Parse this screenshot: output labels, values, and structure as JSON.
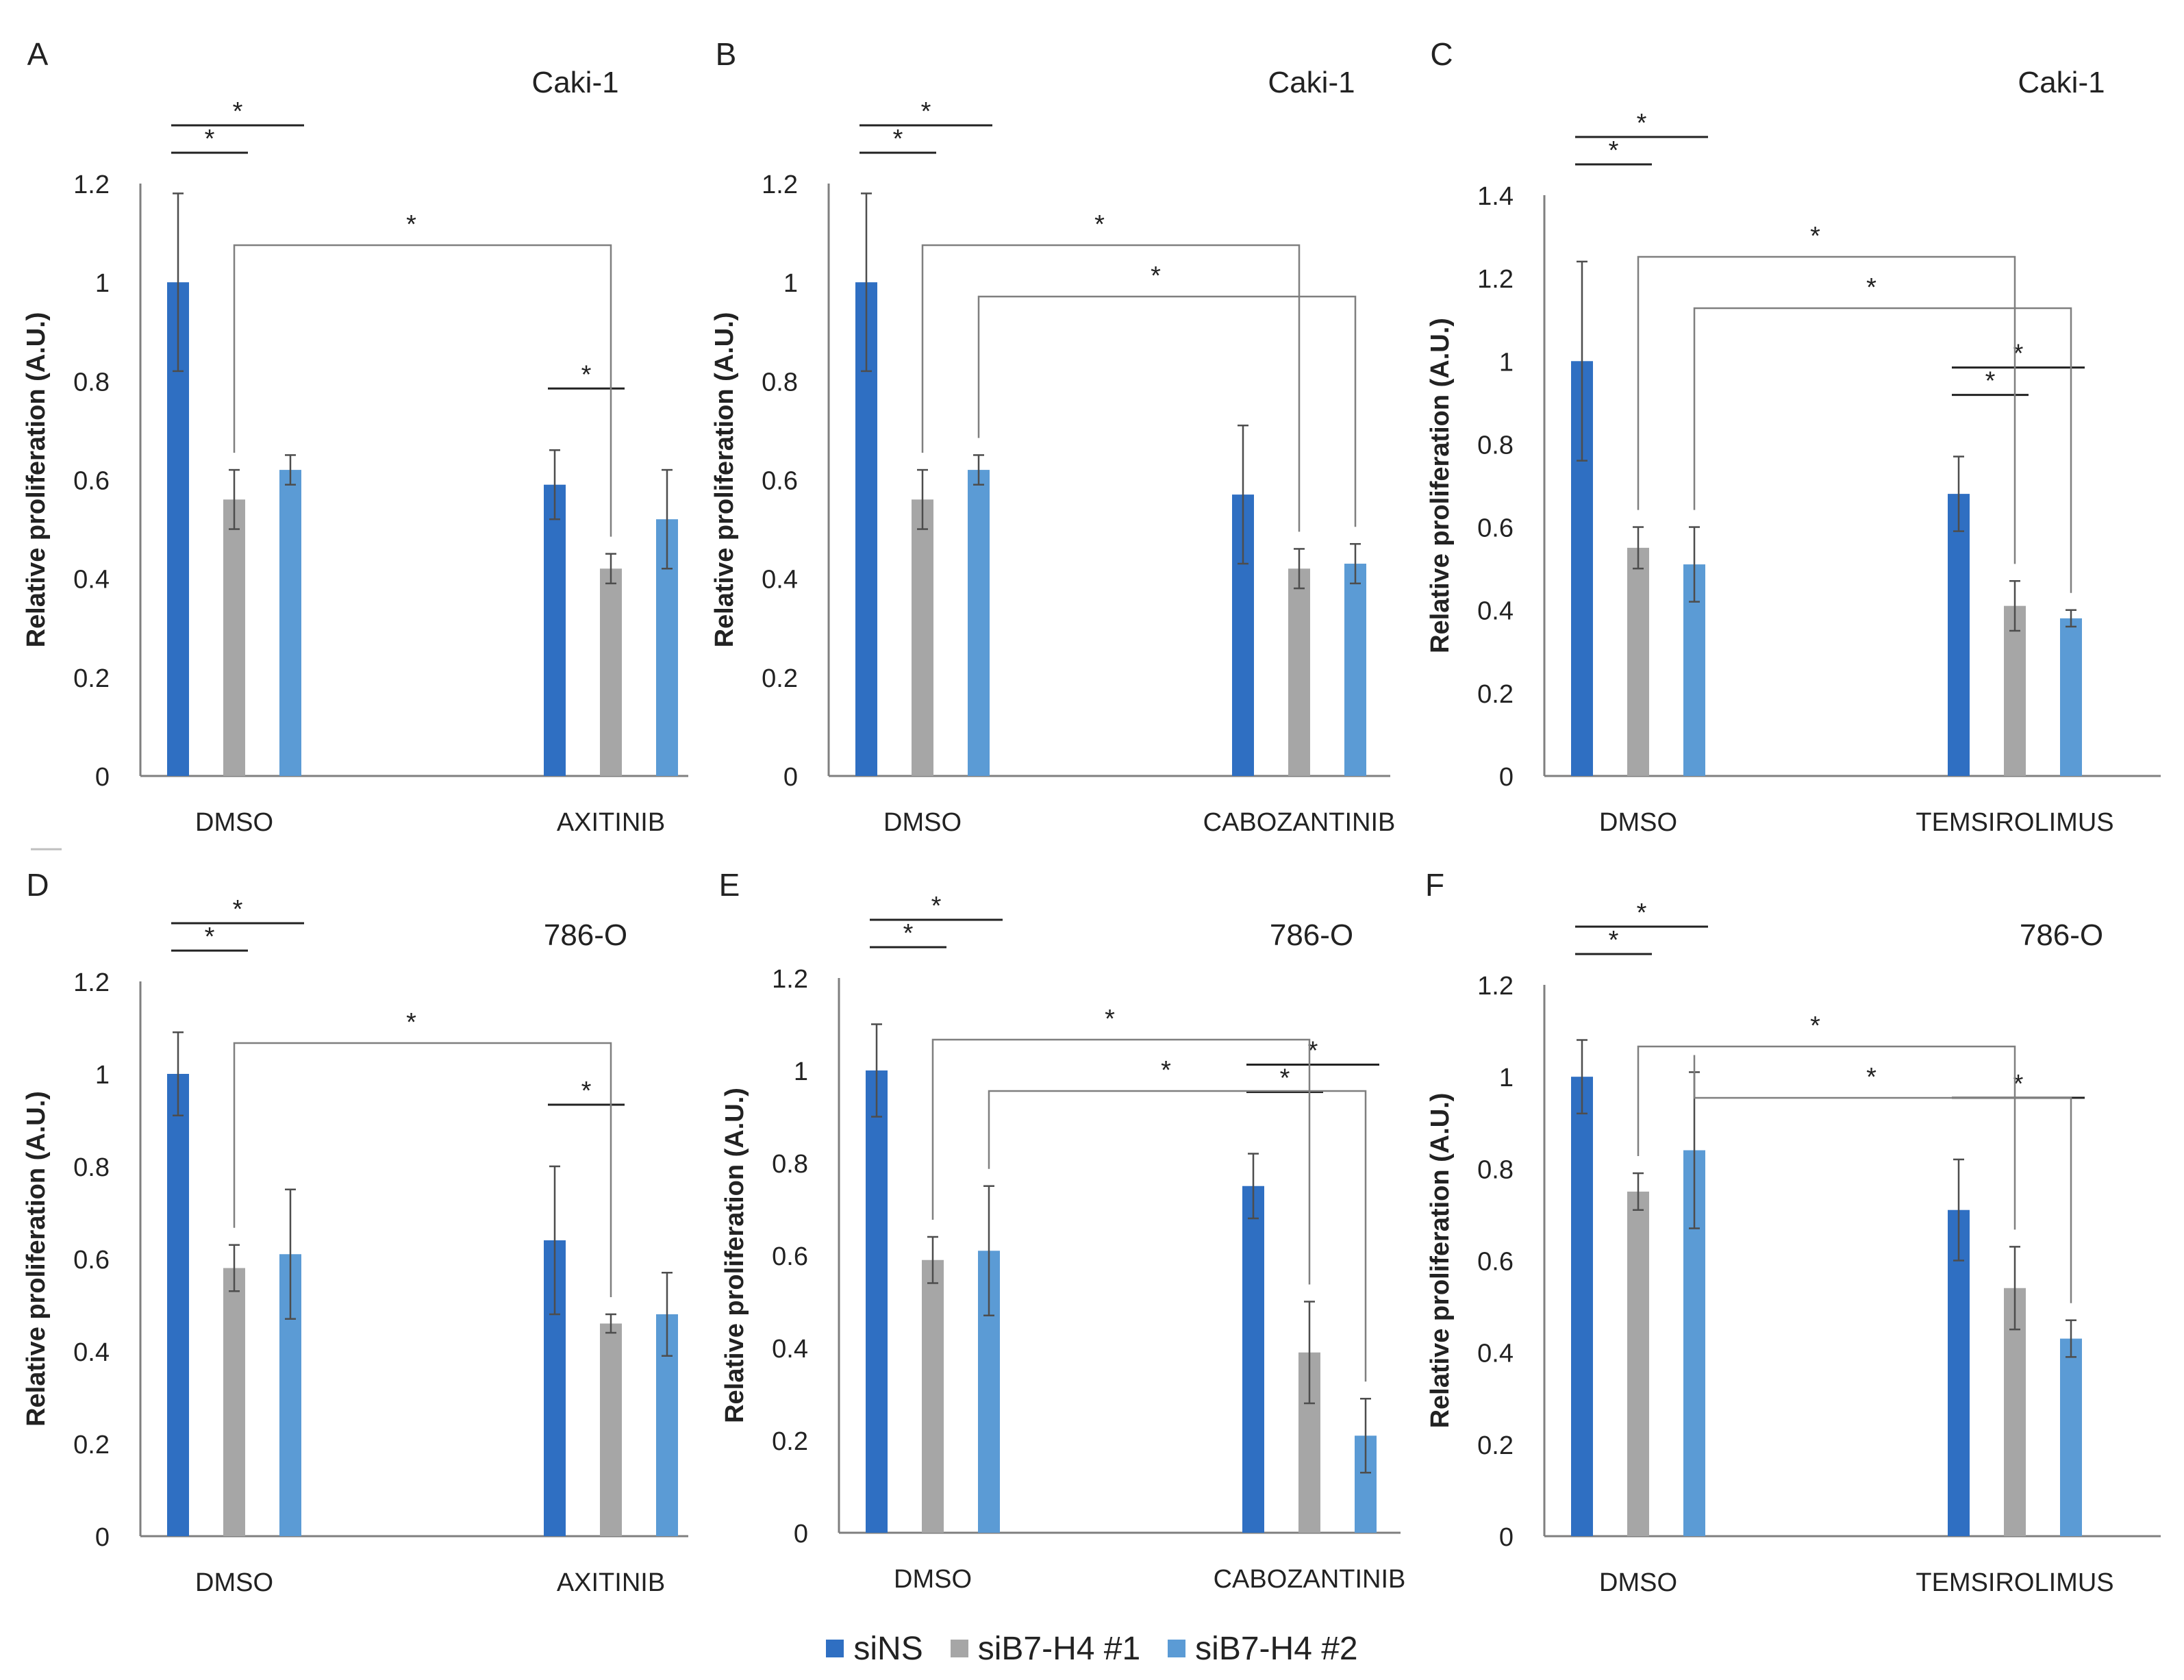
{
  "colors": {
    "siNS": "#2f6fc2",
    "siB7_1": "#a6a6a6",
    "siB7_2": "#5b9bd5",
    "axis": "#7f7f7f",
    "bracket": "#7f7f7f",
    "sigline": "#222222",
    "text": "#222222"
  },
  "legend": {
    "items": [
      {
        "label": "siNS",
        "color_key": "siNS"
      },
      {
        "label": "siB7-H4 #1",
        "color_key": "siB7_1"
      },
      {
        "label": "siB7-H4 #2",
        "color_key": "siB7_2"
      }
    ]
  },
  "chart_data": [
    {
      "panel": "A",
      "cell_line": "Caki-1",
      "type": "bar",
      "ylabel": "Relative proliferation (A.U.)",
      "ylim": [
        0,
        1.2
      ],
      "yticks": [
        "0",
        "0.2",
        "0.4",
        "0.6",
        "0.8",
        "1",
        "1.2"
      ],
      "categories": [
        "DMSO",
        "AXITINIB"
      ],
      "series": [
        {
          "name": "siNS",
          "values": [
            1.0,
            0.59
          ],
          "errors": [
            0.18,
            0.07
          ]
        },
        {
          "name": "siB7-H4 #1",
          "values": [
            0.56,
            0.42
          ],
          "errors": [
            0.06,
            0.03
          ]
        },
        {
          "name": "siB7-H4 #2",
          "values": [
            0.62,
            0.52
          ],
          "errors": [
            0.03,
            0.1
          ]
        }
      ],
      "significance": [
        {
          "type": "line",
          "from": [
            0,
            0
          ],
          "to": [
            0,
            1
          ],
          "label": "*"
        },
        {
          "type": "line",
          "from": [
            0,
            0
          ],
          "to": [
            0,
            2
          ],
          "label": "*"
        },
        {
          "type": "line",
          "from": [
            1,
            0
          ],
          "to": [
            1,
            1
          ],
          "label": "*"
        },
        {
          "type": "bracket",
          "from": [
            0,
            1
          ],
          "to": [
            1,
            1
          ],
          "label": "*"
        }
      ]
    },
    {
      "panel": "B",
      "cell_line": "Caki-1",
      "type": "bar",
      "ylabel": "Relative proliferation (A.U.)",
      "ylim": [
        0,
        1.2
      ],
      "yticks": [
        "0",
        "0.2",
        "0.4",
        "0.6",
        "0.8",
        "1",
        "1.2"
      ],
      "categories": [
        "DMSO",
        "CABOZANTINIB"
      ],
      "series": [
        {
          "name": "siNS",
          "values": [
            1.0,
            0.57
          ],
          "errors": [
            0.18,
            0.14
          ]
        },
        {
          "name": "siB7-H4 #1",
          "values": [
            0.56,
            0.42
          ],
          "errors": [
            0.06,
            0.04
          ]
        },
        {
          "name": "siB7-H4 #2",
          "values": [
            0.62,
            0.43
          ],
          "errors": [
            0.03,
            0.04
          ]
        }
      ],
      "significance": [
        {
          "type": "line",
          "from": [
            0,
            0
          ],
          "to": [
            0,
            1
          ],
          "label": "*"
        },
        {
          "type": "line",
          "from": [
            0,
            0
          ],
          "to": [
            0,
            2
          ],
          "label": "*"
        },
        {
          "type": "bracket",
          "from": [
            0,
            1
          ],
          "to": [
            1,
            1
          ],
          "label": "*"
        },
        {
          "type": "bracket",
          "from": [
            0,
            2
          ],
          "to": [
            1,
            2
          ],
          "label": "*"
        }
      ]
    },
    {
      "panel": "C",
      "cell_line": "Caki-1",
      "type": "bar",
      "ylabel": "Relative proliferation (A.U.)",
      "ylim": [
        0,
        1.4
      ],
      "yticks": [
        "0",
        "0.2",
        "0.4",
        "0.6",
        "0.8",
        "1",
        "1.2",
        "1.4"
      ],
      "categories": [
        "DMSO",
        "TEMSIROLIMUS"
      ],
      "series": [
        {
          "name": "siNS",
          "values": [
            1.0,
            0.68
          ],
          "errors": [
            0.24,
            0.09
          ]
        },
        {
          "name": "siB7-H4 #1",
          "values": [
            0.55,
            0.41
          ],
          "errors": [
            0.05,
            0.06
          ]
        },
        {
          "name": "siB7-H4 #2",
          "values": [
            0.51,
            0.38
          ],
          "errors": [
            0.09,
            0.02
          ]
        }
      ],
      "significance": [
        {
          "type": "line",
          "from": [
            0,
            0
          ],
          "to": [
            0,
            1
          ],
          "label": "*"
        },
        {
          "type": "line",
          "from": [
            0,
            0
          ],
          "to": [
            0,
            2
          ],
          "label": "*"
        },
        {
          "type": "line",
          "from": [
            1,
            0
          ],
          "to": [
            1,
            1
          ],
          "label": "*"
        },
        {
          "type": "line",
          "from": [
            1,
            0
          ],
          "to": [
            1,
            2
          ],
          "label": "*"
        },
        {
          "type": "bracket",
          "from": [
            0,
            1
          ],
          "to": [
            1,
            1
          ],
          "label": "*"
        },
        {
          "type": "bracket",
          "from": [
            0,
            2
          ],
          "to": [
            1,
            2
          ],
          "label": "*"
        }
      ]
    },
    {
      "panel": "D",
      "cell_line": "786-O",
      "type": "bar",
      "ylabel": "Relative proliferation (A.U.)",
      "ylim": [
        0,
        1.2
      ],
      "yticks": [
        "0",
        "0.2",
        "0.4",
        "0.6",
        "0.8",
        "1",
        "1.2"
      ],
      "categories": [
        "DMSO",
        "AXITINIB"
      ],
      "series": [
        {
          "name": "siNS",
          "values": [
            1.0,
            0.64
          ],
          "errors": [
            0.09,
            0.16
          ]
        },
        {
          "name": "siB7-H4 #1",
          "values": [
            0.58,
            0.46
          ],
          "errors": [
            0.05,
            0.02
          ]
        },
        {
          "name": "siB7-H4 #2",
          "values": [
            0.61,
            0.48
          ],
          "errors": [
            0.14,
            0.09
          ]
        }
      ],
      "significance": [
        {
          "type": "line",
          "from": [
            0,
            0
          ],
          "to": [
            0,
            1
          ],
          "label": "*"
        },
        {
          "type": "line",
          "from": [
            0,
            0
          ],
          "to": [
            0,
            2
          ],
          "label": "*"
        },
        {
          "type": "line",
          "from": [
            1,
            0
          ],
          "to": [
            1,
            1
          ],
          "label": "*"
        },
        {
          "type": "bracket",
          "from": [
            0,
            1
          ],
          "to": [
            1,
            1
          ],
          "label": "*"
        }
      ]
    },
    {
      "panel": "E",
      "cell_line": "786-O",
      "type": "bar",
      "ylabel": "Relative proliferation (A.U.)",
      "ylim": [
        0,
        1.2
      ],
      "yticks": [
        "0",
        "0.2",
        "0.4",
        "0.6",
        "0.8",
        "1",
        "1.2"
      ],
      "categories": [
        "DMSO",
        "CABOZANTINIB"
      ],
      "series": [
        {
          "name": "siNS",
          "values": [
            1.0,
            0.75
          ],
          "errors": [
            0.1,
            0.07
          ]
        },
        {
          "name": "siB7-H4 #1",
          "values": [
            0.59,
            0.39
          ],
          "errors": [
            0.05,
            0.11
          ]
        },
        {
          "name": "siB7-H4 #2",
          "values": [
            0.61,
            0.21
          ],
          "errors": [
            0.14,
            0.08
          ]
        }
      ],
      "significance": [
        {
          "type": "line",
          "from": [
            0,
            0
          ],
          "to": [
            0,
            1
          ],
          "label": "*"
        },
        {
          "type": "line",
          "from": [
            0,
            0
          ],
          "to": [
            0,
            2
          ],
          "label": "*"
        },
        {
          "type": "line",
          "from": [
            1,
            0
          ],
          "to": [
            1,
            1
          ],
          "label": "*"
        },
        {
          "type": "line",
          "from": [
            1,
            0
          ],
          "to": [
            1,
            2
          ],
          "label": "*"
        },
        {
          "type": "bracket",
          "from": [
            0,
            1
          ],
          "to": [
            1,
            1
          ],
          "label": "*"
        },
        {
          "type": "bracket",
          "from": [
            0,
            2
          ],
          "to": [
            1,
            2
          ],
          "label": "*"
        }
      ]
    },
    {
      "panel": "F",
      "cell_line": "786-O",
      "type": "bar",
      "ylabel": "Relative proliferation (A.U.)",
      "ylim": [
        0,
        1.2
      ],
      "yticks": [
        "0",
        "0.2",
        "0.4",
        "0.6",
        "0.8",
        "1",
        "1.2"
      ],
      "categories": [
        "DMSO",
        "TEMSIROLIMUS"
      ],
      "series": [
        {
          "name": "siNS",
          "values": [
            1.0,
            0.71
          ],
          "errors": [
            0.08,
            0.11
          ]
        },
        {
          "name": "siB7-H4 #1",
          "values": [
            0.75,
            0.54
          ],
          "errors": [
            0.04,
            0.09
          ]
        },
        {
          "name": "siB7-H4 #2",
          "values": [
            0.84,
            0.43
          ],
          "errors": [
            0.17,
            0.04
          ]
        }
      ],
      "significance": [
        {
          "type": "line",
          "from": [
            0,
            0
          ],
          "to": [
            0,
            1
          ],
          "label": "*"
        },
        {
          "type": "line",
          "from": [
            0,
            0
          ],
          "to": [
            0,
            2
          ],
          "label": "*"
        },
        {
          "type": "line",
          "from": [
            1,
            0
          ],
          "to": [
            1,
            2
          ],
          "label": "*"
        },
        {
          "type": "bracket",
          "from": [
            0,
            1
          ],
          "to": [
            1,
            1
          ],
          "label": "*"
        },
        {
          "type": "bracket",
          "from": [
            0,
            2
          ],
          "to": [
            1,
            2
          ],
          "label": "*"
        }
      ]
    }
  ]
}
